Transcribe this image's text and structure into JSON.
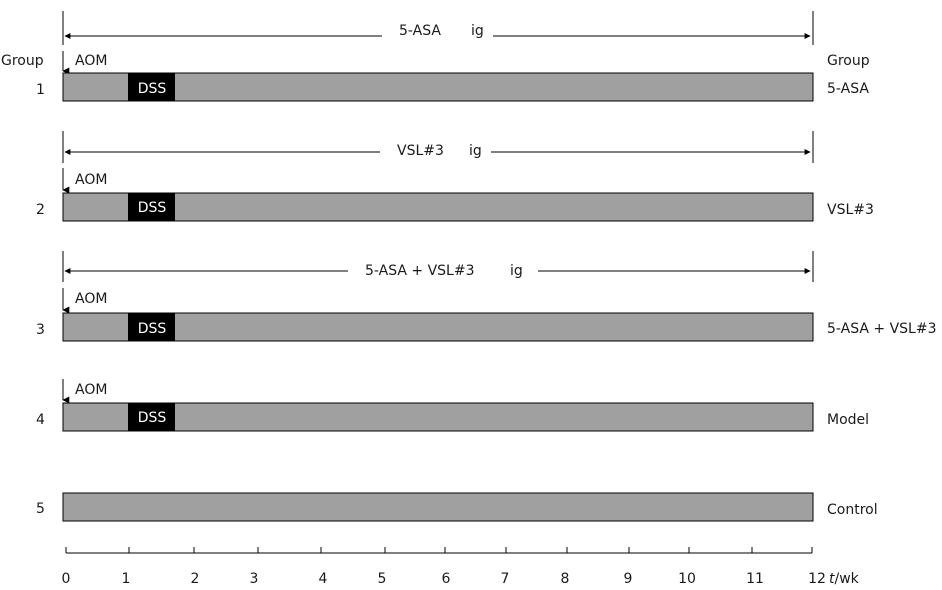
{
  "header": {
    "left_label": "Group",
    "right_label": "Group"
  },
  "colors": {
    "bar": "#a0a0a0",
    "dss": "#000000",
    "line": "#000000",
    "background": "#ffffff"
  },
  "treatments": [
    {
      "label": "5-ASA",
      "route": "ig"
    },
    {
      "label": "VSL#3",
      "route": "ig"
    },
    {
      "label": "5-ASA + VSL#3",
      "route": "ig"
    }
  ],
  "groups": [
    {
      "number": "1",
      "name": "5-ASA",
      "aom_label": "AOM",
      "dss_label": "DSS"
    },
    {
      "number": "2",
      "name": "VSL#3",
      "aom_label": "AOM",
      "dss_label": "DSS"
    },
    {
      "number": "3",
      "name": "5-ASA + VSL#3",
      "aom_label": "AOM",
      "dss_label": "DSS"
    },
    {
      "number": "4",
      "name": "Model",
      "aom_label": "AOM",
      "dss_label": "DSS"
    },
    {
      "number": "5",
      "name": "Control"
    }
  ],
  "timeline": {
    "dss_start_week": 1,
    "dss_end_week": 1.7,
    "duration_weeks": 12,
    "ticks": [
      "0",
      "1",
      "2",
      "3",
      "4",
      "5",
      "6",
      "7",
      "8",
      "9",
      "10",
      "11",
      "12"
    ],
    "unit_t": "t",
    "unit_rest": "/wk"
  }
}
